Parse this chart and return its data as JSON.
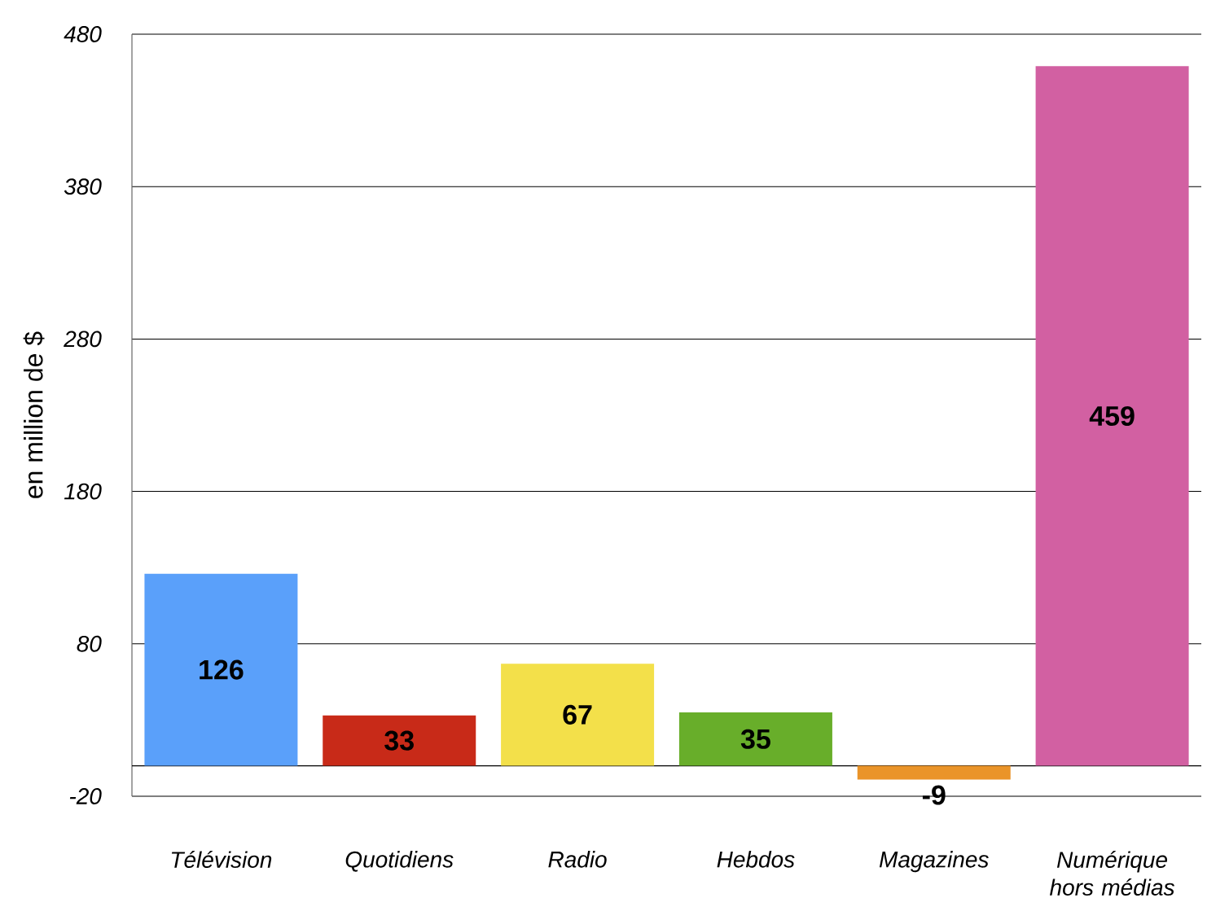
{
  "chart_data": {
    "type": "bar",
    "ylabel": "en million de $",
    "categories": [
      "Télévision",
      "Quotidiens",
      "Radio",
      "Hebdos",
      "Magazines",
      "Numérique hors médias"
    ],
    "values": [
      126,
      33,
      67,
      35,
      -9,
      459
    ],
    "colors": [
      "#5aa0fa",
      "#c82a18",
      "#f3e04a",
      "#68ae2a",
      "#ea9429",
      "#d260a2"
    ],
    "ylim": [
      -20,
      480
    ],
    "yticks": [
      -20,
      80,
      180,
      280,
      380,
      480
    ],
    "grid": "y",
    "data_labels": true,
    "ref_lines": [
      {
        "axis": "y",
        "value": 0,
        "color": "#000000"
      }
    ]
  }
}
